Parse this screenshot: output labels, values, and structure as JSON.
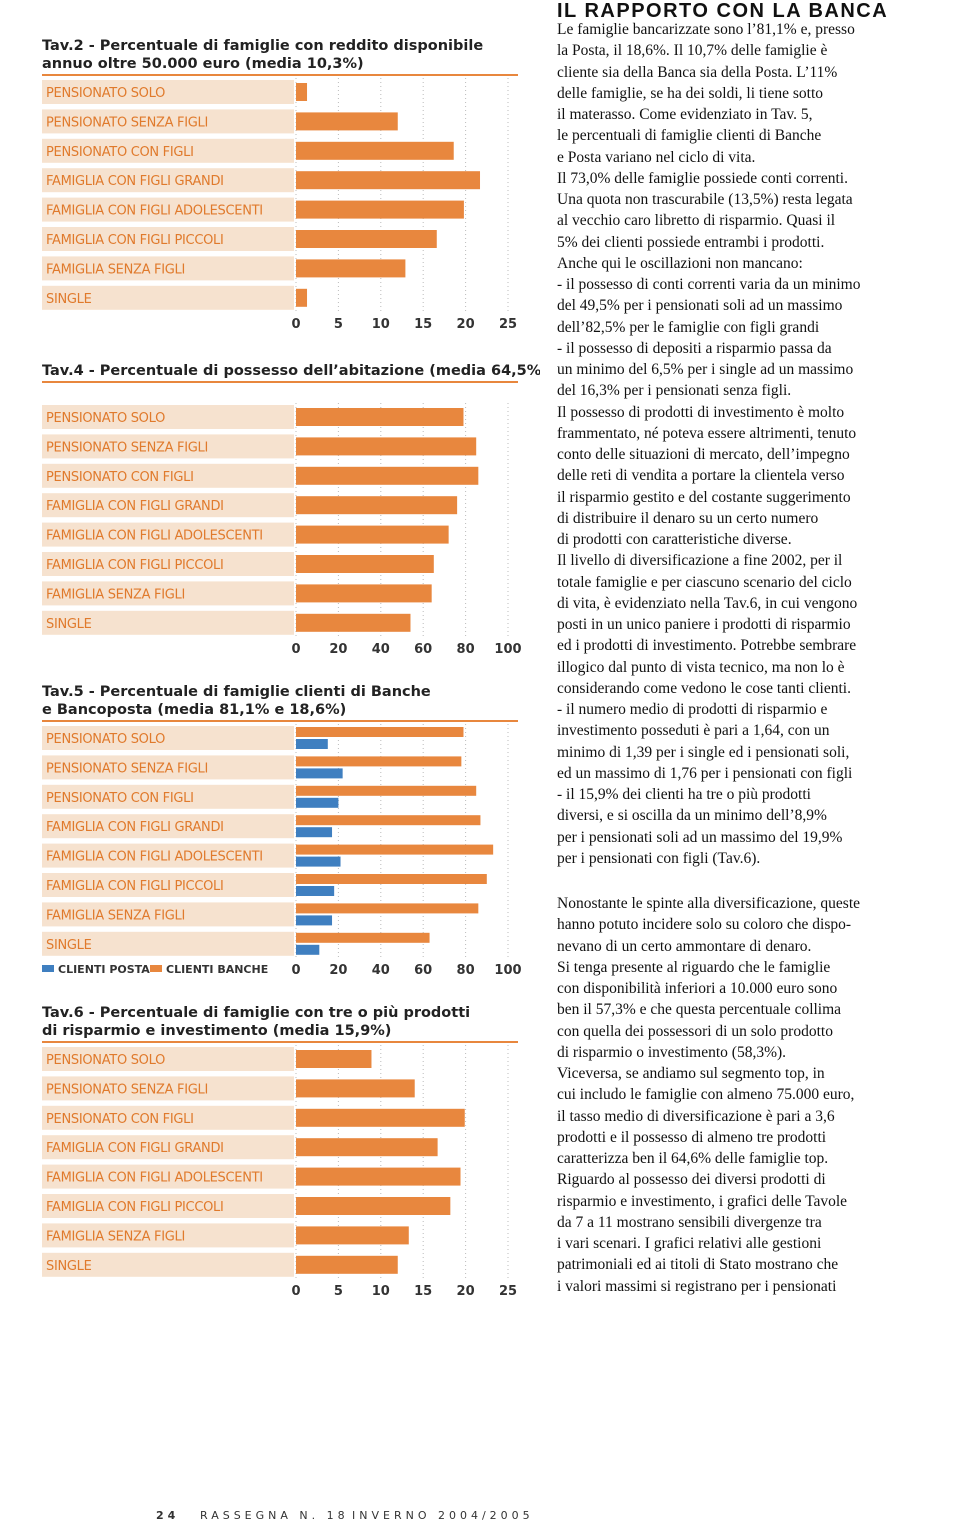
{
  "header": "IL RAPPORTO CON LA BANCA",
  "article": {
    "blocks": [
      [
        "Le famiglie bancarizzate sono l’81,1% e, presso",
        "la Posta, il 18,6%. Il 10,7% delle famiglie è",
        "cliente sia della Banca sia della Posta. L’11%",
        "delle famiglie, se ha dei soldi, li tiene sotto",
        "il materasso. Come evidenziato in Tav. 5,",
        "le percentuali di famiglie clienti di Banche",
        "e Posta variano nel ciclo di vita.",
        "Il 73,0% delle famiglie possiede conti correnti.",
        "Una quota non trascurabile (13,5%) resta legata",
        "al vecchio caro libretto di risparmio. Quasi il",
        "5% dei clienti possiede entrambi i prodotti.",
        "Anche qui le oscillazioni non mancano:",
        "- il possesso di conti correnti varia da un minimo",
        "del 49,5% per i pensionati soli ad un massimo",
        "dell’82,5% per le famiglie con figli grandi",
        "- il possesso di depositi a risparmio passa da",
        "un minimo del 6,5% per i single ad un massimo",
        "del 16,3% per i pensionati senza figli.",
        "Il possesso di prodotti di investimento è molto",
        "frammentato, né poteva essere altrimenti, tenuto",
        "conto delle situazioni di mercato, dell’impegno",
        "delle reti di vendita a portare la clientela verso",
        "il risparmio gestito e del costante suggerimento",
        "di distribuire il denaro su un certo numero",
        "di prodotti con caratteristiche diverse.",
        "Il livello di diversificazione a fine 2002, per il",
        "totale famiglie e per ciascuno scenario del ciclo",
        "di vita, è evidenziato nella Tav.6, in cui vengono",
        "posti in un unico paniere i prodotti di risparmio",
        "ed i prodotti di investimento. Potrebbe sembrare",
        "illogico dal punto di vista tecnico, ma non lo è",
        "considerando come vedono le cose tanti clienti.",
        "- il numero medio di prodotti di risparmio e",
        "investimento posseduti è pari a 1,64, con un",
        "minimo di 1,39 per i single ed i pensionati soli,",
        "ed un massimo di 1,76 per i pensionati con figli",
        "- il 15,9% dei clienti ha tre o più prodotti",
        "diversi, e si oscilla da un minimo dell’8,9%",
        "per i pensionati soli ad un massimo del 19,9%",
        "per i pensionati con figli (Tav.6)."
      ],
      [
        "Nonostante le spinte alla diversificazione, queste",
        "hanno potuto incidere solo su coloro che dispo-",
        "nevano di un certo ammontare di denaro.",
        "Si tenga presente al riguardo che le famiglie",
        "con disponibilità inferiori a 10.000 euro sono",
        "ben il 57,3% e che questa percentuale collima",
        "con quella dei possessori di un solo prodotto",
        "di risparmio o investimento (58,3%).",
        "Viceversa, se andiamo sul segmento top, in",
        "cui includo le famiglie con almeno 75.000 euro,",
        "il tasso medio di diversificazione è pari a 3,6",
        "prodotti e il possesso di almeno tre prodotti",
        "caratterizza ben il 64,6% delle famiglie top.",
        "Riguardo al possesso dei diversi prodotti di",
        "risparmio e investimento, i grafici delle Tavole",
        "da 7 a 11 mostrano sensibili divergenze tra",
        "i vari scenari. I grafici relativi alle gestioni",
        "patrimoniali ed ai titoli di Stato mostrano che",
        "i valori massimi si registrano per i pensionati"
      ]
    ]
  },
  "chart_data": [
    {
      "type": "hbar",
      "title": [
        "Tav.2 - Percentuale di famiglie con reddito disponibile",
        "annuo oltre 50.000 euro (media 10,3%)"
      ],
      "categories": [
        "PENSIONATO SOLO",
        "PENSIONATO SENZA FIGLI",
        "PENSIONATO CON FIGLI",
        "FAMIGLIA CON FIGLI GRANDI",
        "FAMIGLIA CON FIGLI ADOLESCENTI",
        "FAMIGLIA CON FIGLI PICCOLI",
        "FAMIGLIA SENZA FIGLI",
        "SINGLE"
      ],
      "values": [
        1.3,
        12,
        18.6,
        21.7,
        19.8,
        16.6,
        12.9,
        1.3
      ],
      "color": "#e8873e",
      "xlim": [
        0,
        25
      ],
      "xticks": [
        0,
        5,
        10,
        15,
        20,
        25
      ]
    },
    {
      "type": "hbar",
      "title": [
        "Tav.4 - Percentuale di possesso dell’abitazione (media 64,5%)"
      ],
      "categories": [
        "PENSIONATO SOLO",
        "PENSIONATO SENZA FIGLI",
        "PENSIONATO CON FIGLI",
        "FAMIGLIA CON FIGLI GRANDI",
        "FAMIGLIA CON FIGLI ADOLESCENTI",
        "FAMIGLIA CON FIGLI PICCOLI",
        "FAMIGLIA SENZA FIGLI",
        "SINGLE"
      ],
      "values": [
        79,
        85,
        86,
        76,
        72,
        65,
        64,
        54
      ],
      "color": "#e8873e",
      "xlim": [
        0,
        100
      ],
      "xticks": [
        0,
        20,
        40,
        60,
        80,
        100
      ]
    },
    {
      "type": "hbar",
      "title": [
        "Tav.5 - Percentuale di famiglie clienti di Banche",
        "e Bancoposta (media 81,1% e 18,6%)"
      ],
      "categories": [
        "PENSIONATO SOLO",
        "PENSIONATO SENZA FIGLI",
        "PENSIONATO CON FIGLI",
        "FAMIGLIA CON FIGLI GRANDI",
        "FAMIGLIA CON FIGLI ADOLESCENTI",
        "FAMIGLIA CON FIGLI PICCOLI",
        "FAMIGLIA SENZA FIGLI",
        "SINGLE"
      ],
      "series": [
        {
          "name": "CLIENTI POSTA",
          "color": "#3f7fc0",
          "values": [
            15,
            22,
            20,
            17,
            21,
            18,
            17,
            11
          ]
        },
        {
          "name": "CLIENTI BANCHE",
          "color": "#e8873e",
          "values": [
            79,
            78,
            85,
            87,
            93,
            90,
            86,
            63
          ]
        }
      ],
      "xlim": [
        0,
        100
      ],
      "xticks": [
        0,
        20,
        40,
        60,
        80,
        100
      ]
    },
    {
      "type": "hbar",
      "title": [
        "Tav.6 - Percentuale di famiglie con tre o più prodotti",
        "di risparmio e investimento (media 15,9%)"
      ],
      "categories": [
        "PENSIONATO SOLO",
        "PENSIONATO SENZA FIGLI",
        "PENSIONATO CON FIGLI",
        "FAMIGLIA CON FIGLI GRANDI",
        "FAMIGLIA CON FIGLI ADOLESCENTI",
        "FAMIGLIA CON FIGLI PICCOLI",
        "FAMIGLIA SENZA FIGLI",
        "SINGLE"
      ],
      "values": [
        8.9,
        14,
        19.9,
        16.7,
        19.4,
        18.2,
        13.3,
        12
      ],
      "color": "#e8873e",
      "xlim": [
        0,
        25
      ],
      "xticks": [
        0,
        5,
        10,
        15,
        20,
        25
      ]
    }
  ],
  "footer": {
    "page": "24",
    "magazine": "RASSEGNA N. 18",
    "issue": "INVERNO 2004/2005"
  }
}
